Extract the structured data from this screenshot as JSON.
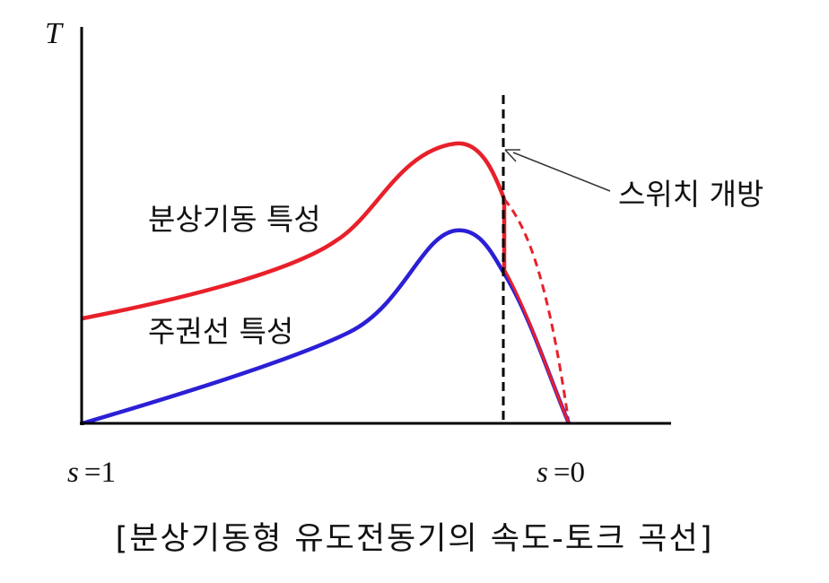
{
  "axes": {
    "y_label": "T",
    "x_left_label": "s",
    "x_left_value": "1",
    "x_right_label": "s",
    "x_right_value": "0",
    "equals_sign": "="
  },
  "curves": {
    "split_phase": {
      "label": "분상기동 특성",
      "color": "#e8202a"
    },
    "main_winding": {
      "label": "주권선 특성",
      "color": "#2b1fd6"
    }
  },
  "switch": {
    "label": "스위치 개방"
  },
  "caption": "[분상기동형 유도전동기의 속도-토크 곡선]"
}
